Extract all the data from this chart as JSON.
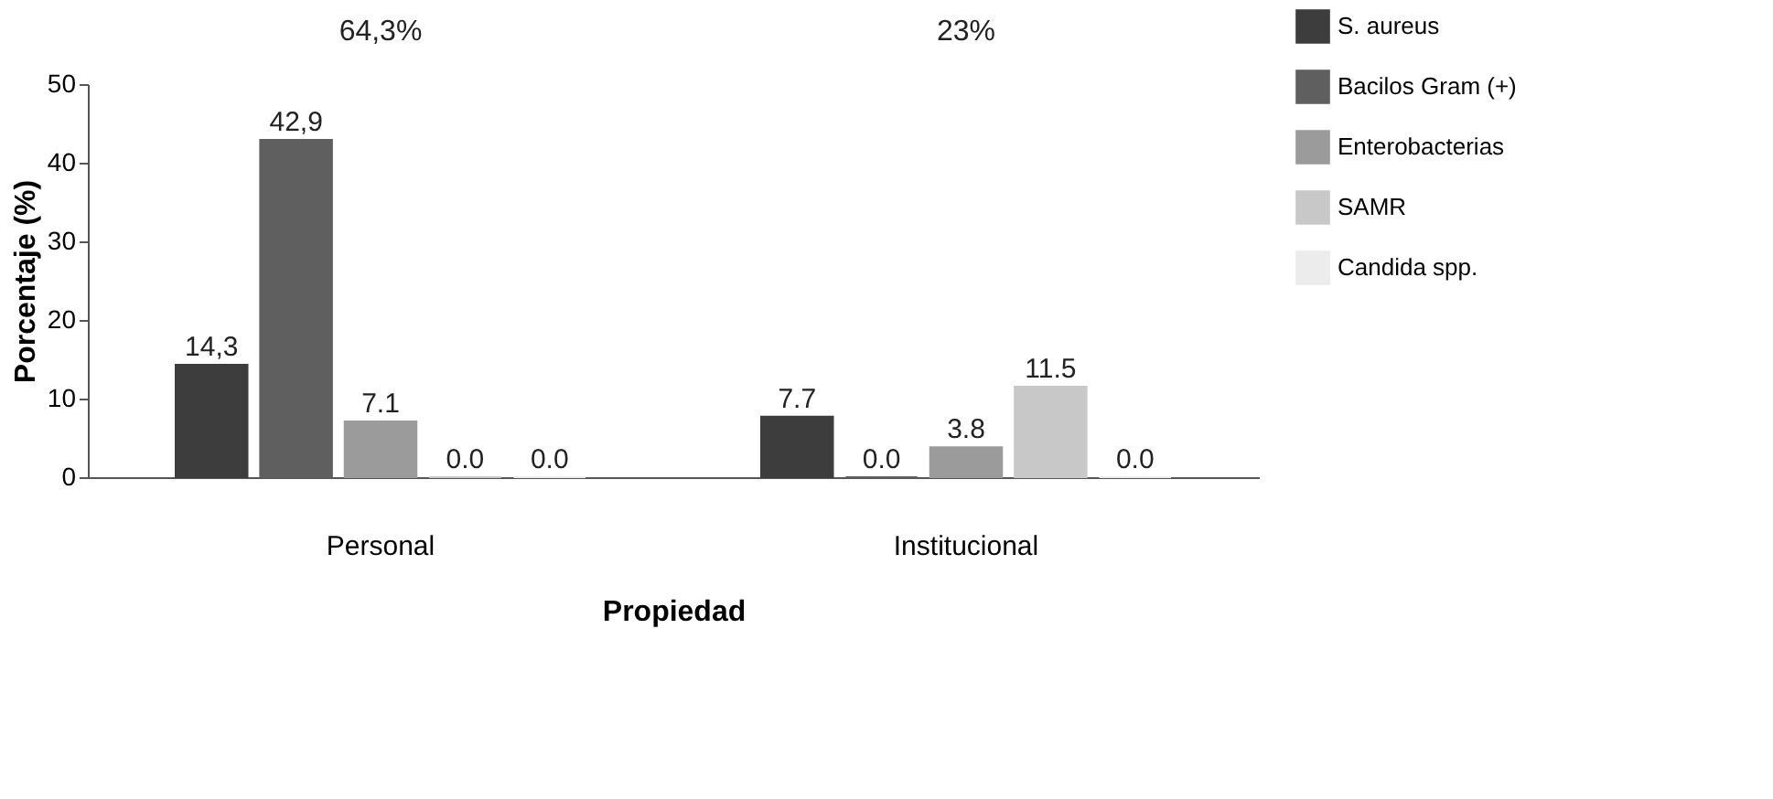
{
  "chart_data": {
    "type": "bar",
    "xlabel": "Propiedad",
    "ylabel": "Porcentaje (%)",
    "categories": [
      "Personal",
      "Institucional"
    ],
    "series": [
      {
        "name": "S. aureus",
        "color": "#3d3d3d",
        "values": [
          14.3,
          7.7
        ],
        "value_labels": [
          "14,3",
          "7.7"
        ]
      },
      {
        "name": "Bacilos Gram (+)",
        "color": "#5f5f5f",
        "values": [
          42.9,
          0.0
        ],
        "value_labels": [
          "42,9",
          "0.0"
        ]
      },
      {
        "name": "Enterobacterias",
        "color": "#9b9b9b",
        "values": [
          7.1,
          3.8
        ],
        "value_labels": [
          "7.1",
          "3.8"
        ]
      },
      {
        "name": "SAMR",
        "color": "#c8c8c8",
        "values": [
          0.0,
          11.5
        ],
        "value_labels": [
          "0.0",
          "11.5"
        ]
      },
      {
        "name": "Candida spp.",
        "color": "#ececec",
        "values": [
          0.0,
          0.0
        ],
        "value_labels": [
          "0.0",
          "0.0"
        ]
      }
    ],
    "ylim": [
      0,
      50
    ],
    "yticks": [
      0,
      10,
      20,
      30,
      40,
      50
    ],
    "grid": false,
    "legend": "right",
    "annotations": [
      "64,3%",
      "23%"
    ]
  }
}
